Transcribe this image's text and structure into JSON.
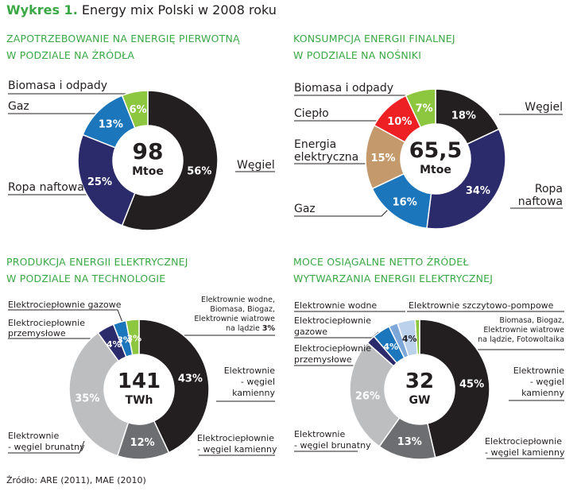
{
  "title": {
    "prefix": "Wykres 1.",
    "text": "Energy mix Polski w 2008 roku"
  },
  "source": "Źródło: ARE (2011), MAE (2010)",
  "chart_data": [
    {
      "type": "pie",
      "title_line1": "ZAPOTRZEBOWANIE NA ENERGIĘ PIERWOTNĄ",
      "title_line2": "W PODZIALE NA ŹRÓDŁA",
      "center_value": "98",
      "center_unit": "Mtoe",
      "slices": [
        {
          "label": "Węgiel",
          "value": 56,
          "display": "56%",
          "color": "#231f20"
        },
        {
          "label": "Ropa naftowa",
          "value": 25,
          "display": "25%",
          "color": "#2b2a6b"
        },
        {
          "label": "Gaz",
          "value": 13,
          "display": "13%",
          "color": "#1b76bc"
        },
        {
          "label": "Biomasa i odpady",
          "value": 6,
          "display": "6%",
          "color": "#8dc63f"
        }
      ]
    },
    {
      "type": "pie",
      "title_line1": "KONSUMPCJA ENERGII FINALNEJ",
      "title_line2": "W PODZIALE NA NOŚNIKI",
      "center_value": "65,5",
      "center_unit": "Mtoe",
      "slices": [
        {
          "label": "Węgiel",
          "value": 18,
          "display": "18%",
          "color": "#231f20"
        },
        {
          "label": "Ropa naftowa",
          "value": 34,
          "display": "34%",
          "color": "#2b2a6b"
        },
        {
          "label": "Gaz",
          "value": 16,
          "display": "16%",
          "color": "#1b76bc"
        },
        {
          "label": "Energia elektryczna",
          "value": 15,
          "display": "15%",
          "color": "#c49a6c"
        },
        {
          "label": "Ciepło",
          "value": 10,
          "display": "10%",
          "color": "#ed2024"
        },
        {
          "label": "Biomasa i odpady",
          "value": 7,
          "display": "7%",
          "color": "#8dc63f"
        }
      ]
    },
    {
      "type": "pie",
      "title_line1": "PRODUKCJA ENERGII ELEKTRYCZNEJ",
      "title_line2": "W PODZIALE NA TECHNOLOGIE",
      "center_value": "141",
      "center_unit": "TWh",
      "slices": [
        {
          "label": "Elektrownie - węgiel kamienny",
          "value": 43,
          "display": "43%",
          "color": "#231f20"
        },
        {
          "label": "Elektrociepłownie - węgiel kamienny",
          "value": 12,
          "display": "12%",
          "color": "#6d6e71"
        },
        {
          "label": "Elektrownie - węgiel brunatny",
          "value": 35,
          "display": "35%",
          "color": "#bcbec0"
        },
        {
          "label": "Elektrociepłownie przemysłowe",
          "value": 4,
          "display": "4%",
          "color": "#2b2a6b"
        },
        {
          "label": "Elektrociepłownie gazowe",
          "value": 3,
          "display": "3%",
          "color": "#1b76bc"
        },
        {
          "label": "Elektrownie wodne, Biomasa, Biogaz, Elektrownie wiatrowe na lądzie",
          "value": 3,
          "display": "3%",
          "color": "#8dc63f"
        }
      ]
    },
    {
      "type": "pie",
      "title_line1": "MOCE OSIĄGALNE NETTO ŹRÓDEŁ",
      "title_line2": "WYTWARZANIA ENERGII ELEKTRYCZNEJ",
      "center_value": "32",
      "center_unit": "GW",
      "slices": [
        {
          "label": "Elektrownie - węgiel kamienny",
          "value": 45,
          "display": "45%",
          "color": "#231f20"
        },
        {
          "label": "Elektrociepłownie - węgiel kamienny",
          "value": 13,
          "display": "13%",
          "color": "#6d6e71"
        },
        {
          "label": "Elektrownie - węgiel brunatny",
          "value": 26,
          "display": "26%",
          "color": "#bcbec0"
        },
        {
          "label": "Elektrociepłownie przemysłowe",
          "value": 2,
          "display": "",
          "color": "#2b2a6b"
        },
        {
          "label": "Elektrociepłownie gazowe",
          "value": 4,
          "display": "4%",
          "color": "#1b76bc"
        },
        {
          "label": "Elektrownie wodne",
          "value": 2,
          "display": "",
          "color": "#7da7d9"
        },
        {
          "label": "Elektrownie szczytowo-pompowe",
          "value": 4,
          "display": "4%",
          "color": "#bcd1ec"
        },
        {
          "label": "Biomasa, Biogaz, Elektrownie wiatrowe na lądzie, Fotowoltaika",
          "value": 1,
          "display": "",
          "color": "#8dc63f"
        }
      ]
    }
  ],
  "labels": {
    "p1": {
      "biomasa": "Biomasa i odpady",
      "gaz": "Gaz",
      "ropa": "Ropa naftowa",
      "wegiel": "Węgiel"
    },
    "p2": {
      "biomasa": "Biomasa i odpady",
      "cieplo": "Ciepło",
      "energia1": "Energia",
      "energia2": "elektryczna",
      "gaz": "Gaz",
      "wegiel": "Węgiel",
      "ropa1": "Ropa",
      "ropa2": "naftowa"
    },
    "p3": {
      "gazowe": "Elektrociepłownie gazowe",
      "przem1": "Elektrociepłownie",
      "przem2": "przemysłowe",
      "wodne1": "Elektrownie wodne,",
      "wodne2": "Biomasa, Biogaz,",
      "wodne3": "Elektrownie wiatrowe",
      "wodne4": "na lądzie",
      "wodne4pct": "3%",
      "ek1": "Elektrownie",
      "ek2": "- węgiel",
      "ek3": "kamienny",
      "eck1": "Elektrociepłownie",
      "eck2": "- węgiel kamienny",
      "eb1": "Elektrownie",
      "eb2": "- węgiel brunatny"
    },
    "p4": {
      "wodne": "Elektrownie wodne",
      "szczyt": "Elektrownie szczytowo-pompowe",
      "gaz1": "Elektrociepłownie",
      "gaz2": "gazowe",
      "przem1": "Elektrociepłownie",
      "przem2": "przemysłowe",
      "bio1": "Biomasa, Biogaz,",
      "bio2": "Elektrownie wiatrowe",
      "bio3": "na lądzie, Fotowoltaika",
      "ek1": "Elektrownie",
      "ek2": "- węgiel",
      "ek3": "kamienny",
      "eck1": "Elektrociepłownie",
      "eck2": "- węgiel kamienny",
      "eb1": "Elektrownie",
      "eb2": "- węgiel brunatny"
    }
  }
}
